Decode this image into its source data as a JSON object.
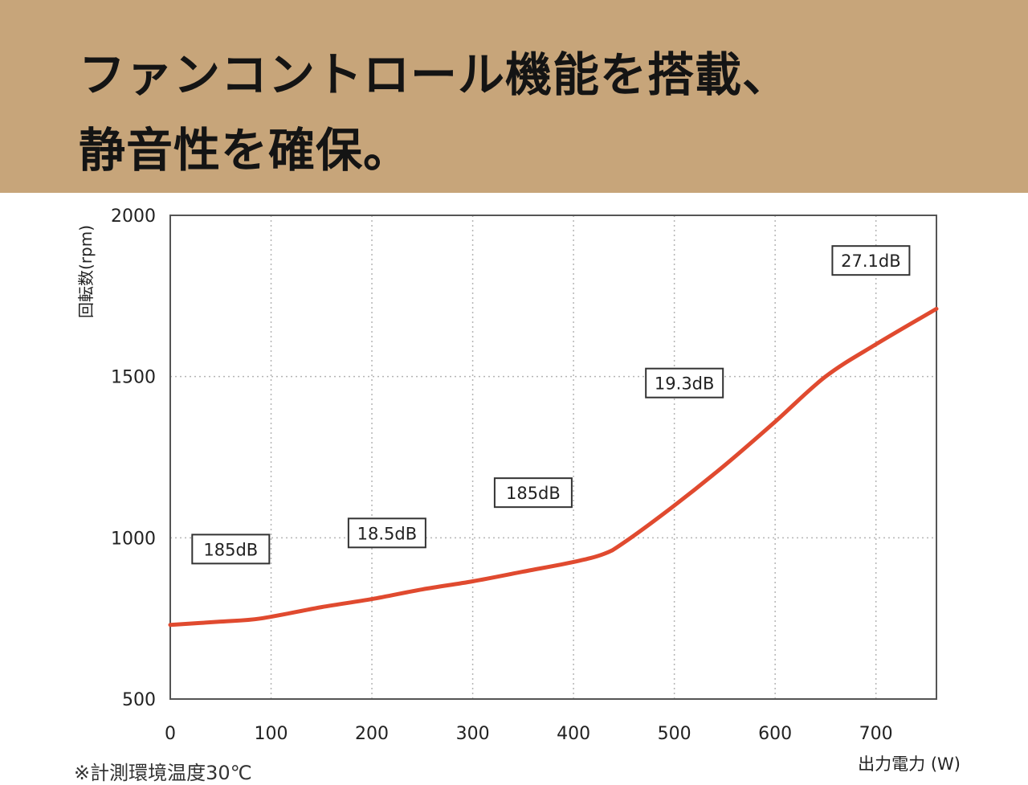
{
  "header": {
    "title_line1": "ファンコントロール機能を搭載、",
    "title_line2": "静音性を確保。"
  },
  "footnote": "※計測環境温度30℃",
  "colors": {
    "banner": "#c7a57a",
    "curve": "#e04a2f",
    "grid": "#b5b5b5",
    "frame": "#555555"
  },
  "chart_data": {
    "type": "line",
    "title": "",
    "xlabel": "出力電力 (W)",
    "ylabel": "回転数(rpm)",
    "xlim": [
      0,
      760
    ],
    "ylim": [
      500,
      2000
    ],
    "x_ticks": [
      "0",
      "100",
      "200",
      "300",
      "400",
      "500",
      "600",
      "700"
    ],
    "y_ticks": [
      "500",
      "1000",
      "1500",
      "2000"
    ],
    "grid": true,
    "series": [
      {
        "x": [
          0,
          50,
          90,
          150,
          200,
          250,
          300,
          350,
          400,
          430,
          450,
          500,
          550,
          600,
          650,
          700,
          760
        ],
        "y": [
          730,
          740,
          750,
          785,
          810,
          840,
          865,
          895,
          925,
          950,
          985,
          1100,
          1225,
          1360,
          1500,
          1600,
          1710
        ]
      }
    ],
    "annotations": [
      {
        "text": "185dB",
        "x": 60,
        "y": 965
      },
      {
        "text": "18.5dB",
        "x": 215,
        "y": 1015
      },
      {
        "text": "185dB",
        "x": 360,
        "y": 1140
      },
      {
        "text": "19.3dB",
        "x": 510,
        "y": 1480
      },
      {
        "text": "27.1dB",
        "x": 695,
        "y": 1860
      }
    ]
  }
}
